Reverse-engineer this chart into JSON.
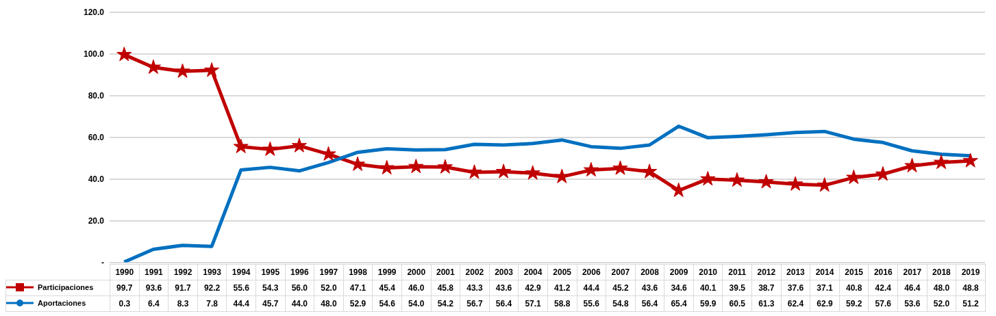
{
  "chart_data": {
    "type": "line",
    "categories": [
      "1990",
      "1991",
      "1992",
      "1993",
      "1994",
      "1995",
      "1996",
      "1997",
      "1998",
      "1999",
      "2000",
      "2001",
      "2002",
      "2003",
      "2004",
      "2005",
      "2006",
      "2007",
      "2008",
      "2009",
      "2010",
      "2011",
      "2012",
      "2013",
      "2014",
      "2015",
      "2016",
      "2017",
      "2018",
      "2019"
    ],
    "series": [
      {
        "name": "Participaciones",
        "color": "#c00000",
        "marker": "star",
        "values": [
          99.7,
          93.6,
          91.7,
          92.2,
          55.6,
          54.3,
          56.0,
          52.0,
          47.1,
          45.4,
          46.0,
          45.8,
          43.3,
          43.6,
          42.9,
          41.2,
          44.4,
          45.2,
          43.6,
          34.6,
          40.1,
          39.5,
          38.7,
          37.6,
          37.1,
          40.8,
          42.4,
          46.4,
          48.0,
          48.8
        ],
        "value_labels": [
          "99.7",
          "93.6",
          "91.7",
          "92.2",
          "55.6",
          "54.3",
          "56.0",
          "52.0",
          "47.1",
          "45.4",
          "46.0",
          "45.8",
          "43.3",
          "43.6",
          "42.9",
          "41.2",
          "44.4",
          "45.2",
          "43.6",
          "34.6",
          "40.1",
          "39.5",
          "38.7",
          "37.6",
          "37.1",
          "40.8",
          "42.4",
          "46.4",
          "48.0",
          "48.8"
        ]
      },
      {
        "name": "Aportaciones",
        "color": "#0070c0",
        "marker": "none",
        "values": [
          0.3,
          6.4,
          8.3,
          7.8,
          44.4,
          45.7,
          44.0,
          48.0,
          52.9,
          54.6,
          54.0,
          54.2,
          56.7,
          56.4,
          57.1,
          58.8,
          55.6,
          54.8,
          56.4,
          65.4,
          59.9,
          60.5,
          61.3,
          62.4,
          62.9,
          59.2,
          57.6,
          53.6,
          52.0,
          51.2
        ],
        "value_labels": [
          "0.3",
          "6.4",
          "8.3",
          "7.8",
          "44.4",
          "45.7",
          "44.0",
          "48.0",
          "52.9",
          "54.6",
          "54.0",
          "54.2",
          "56.7",
          "56.4",
          "57.1",
          "58.8",
          "55.6",
          "54.8",
          "56.4",
          "65.4",
          "59.9",
          "60.5",
          "61.3",
          "62.4",
          "62.9",
          "59.2",
          "57.6",
          "53.6",
          "52.0",
          "51.2"
        ]
      }
    ],
    "ylim": [
      0,
      120
    ],
    "yticks": [
      {
        "value": 0,
        "label": "-"
      },
      {
        "value": 20,
        "label": "20.0"
      },
      {
        "value": 40,
        "label": "40.0"
      },
      {
        "value": 60,
        "label": "60.0"
      },
      {
        "value": 80,
        "label": "80.0"
      },
      {
        "value": 100,
        "label": "100.0"
      },
      {
        "value": 120,
        "label": "120.0"
      }
    ],
    "grid": "y",
    "legend": "bottom",
    "line_style": "solid"
  }
}
